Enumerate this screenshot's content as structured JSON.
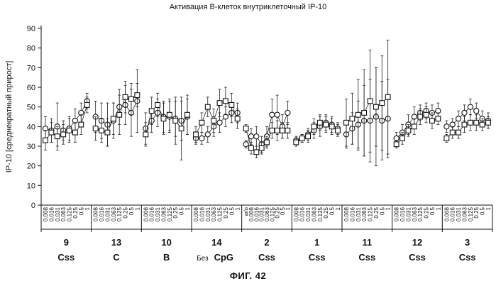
{
  "title": "Активация В-клеток внутриклеточный IP-10",
  "figure_label": "ФИГ. 42",
  "chart_data": {
    "type": "scatter",
    "title": "Активация В-клеток внутриклеточный IP-10",
    "ylabel": "IP-10  [среднекратный прирост]",
    "ylim": [
      0,
      90
    ],
    "yticks": [
      0,
      10,
      20,
      30,
      40,
      50,
      60,
      70,
      80,
      90
    ],
    "markers": [
      "circle",
      "square"
    ],
    "groups": [
      {
        "number": "9",
        "type": "Css",
        "x": [
          "0.008",
          "0.016",
          "0.031",
          "0.063",
          "0.125",
          "0.25",
          "0.5",
          "1"
        ],
        "series": [
          {
            "marker": "circle",
            "values": [
              39,
              38,
              40,
              38,
              39,
              43,
              47,
              53
            ],
            "err": [
              6,
              6,
              12,
              5,
              6,
              6,
              5,
              4
            ]
          },
          {
            "marker": "square",
            "values": [
              33,
              37,
              35,
              36,
              38,
              37,
              41,
              51
            ],
            "err": [
              5,
              5,
              5,
              5,
              6,
              5,
              5,
              4
            ]
          }
        ]
      },
      {
        "number": "13",
        "type": "C",
        "x": [
          "0.008",
          "0.016",
          "0.031",
          "0.063",
          "0.125",
          "0.25",
          "0.5",
          "1"
        ],
        "series": [
          {
            "marker": "circle",
            "values": [
              45,
              43,
              41,
              43,
              50,
              51,
              47,
              53
            ],
            "err": [
              8,
              9,
              11,
              9,
              9,
              10,
              12,
              16
            ]
          },
          {
            "marker": "square",
            "values": [
              39,
              38,
              37,
              44,
              46,
              55,
              54,
              56
            ],
            "err": [
              6,
              6,
              7,
              8,
              10,
              8,
              8,
              6
            ]
          }
        ]
      },
      {
        "number": "10",
        "type": "B",
        "x": [
          "0.008",
          "0.016",
          "0.031",
          "0.063",
          "0.125",
          "0.25",
          "0.5",
          "1"
        ],
        "series": [
          {
            "marker": "circle",
            "values": [
              39,
              43,
              47,
              45,
              45,
              44,
              43,
              45
            ],
            "err": [
              8,
              6,
              7,
              8,
              8,
              9,
              10,
              9
            ]
          },
          {
            "marker": "square",
            "values": [
              36,
              48,
              51,
              44,
              46,
              43,
              39,
              46
            ],
            "err": [
              6,
              7,
              6,
              8,
              8,
              12,
              16,
              10
            ]
          }
        ]
      },
      {
        "number": "14",
        "type": "CpG",
        "type_prefix": "Без",
        "x": [
          "0.008",
          "0.016",
          "0.031",
          "0.063",
          "0.125",
          "0.25",
          "0.5",
          "1"
        ],
        "series": [
          {
            "marker": "circle",
            "values": [
              34,
              34,
              36,
              40,
              42,
              45,
              47,
              47
            ],
            "err": [
              3,
              3,
              4,
              5,
              5,
              5,
              5,
              5
            ]
          },
          {
            "marker": "square",
            "values": [
              36,
              42,
              50,
              43,
              52,
              53,
              51,
              44
            ],
            "err": [
              4,
              5,
              5,
              6,
              7,
              7,
              6,
              5
            ]
          }
        ]
      },
      {
        "number": "2",
        "type": "Css",
        "x": [
          "w/o",
          "0.008",
          "0.016",
          "0.031",
          "0.063",
          "0.125",
          "0.25",
          "0.5",
          "1"
        ],
        "series": [
          {
            "marker": "circle",
            "values": [
              31,
              35,
              35,
              31,
              35,
              46,
              46,
              40,
              47
            ],
            "err": [
              2,
              4,
              5,
              4,
              5,
              8,
              10,
              6,
              6
            ]
          },
          {
            "marker": "square",
            "values": [
              39,
              29,
              27,
              29,
              32,
              38,
              38,
              38,
              38
            ],
            "err": [
              2,
              3,
              3,
              3,
              3,
              4,
              5,
              4,
              4
            ]
          }
        ]
      },
      {
        "number": "1",
        "type": "Css",
        "x": [
          "0.008",
          "0.016",
          "0.031",
          "0.063",
          "0.125",
          "0.25",
          "0.5",
          "1"
        ],
        "series": [
          {
            "marker": "circle",
            "values": [
              33,
              34,
              36,
              38,
              40,
              42,
              41,
              39
            ],
            "err": [
              2,
              2,
              3,
              4,
              5,
              4,
              4,
              3
            ]
          },
          {
            "marker": "square",
            "values": [
              32,
              34,
              35,
              40,
              42,
              41,
              40,
              38
            ],
            "err": [
              2,
              2,
              3,
              4,
              4,
              4,
              4,
              3
            ]
          }
        ]
      },
      {
        "number": "11",
        "type": "Css",
        "x": [
          "0.008",
          "0.016",
          "0.031",
          "0.063",
          "0.125",
          "0.25",
          "0.5",
          "1"
        ],
        "series": [
          {
            "marker": "circle",
            "values": [
              36,
              39,
              41,
              43,
              43,
              45,
              43,
              44
            ],
            "err": [
              7,
              8,
              12,
              18,
              21,
              25,
              20,
              20
            ]
          },
          {
            "marker": "square",
            "values": [
              42,
              44,
              46,
              47,
              53,
              50,
              52,
              55
            ],
            "err": [
              12,
              13,
              18,
              22,
              26,
              20,
              24,
              29
            ]
          }
        ]
      },
      {
        "number": "12",
        "type": "Css",
        "x": [
          "0.008",
          "0.016",
          "0.031",
          "0.063",
          "0.125",
          "0.25",
          "0.5",
          "1"
        ],
        "series": [
          {
            "marker": "circle",
            "values": [
              34,
              37,
              41,
              45,
              47,
              48,
              47,
              48
            ],
            "err": [
              3,
              4,
              5,
              5,
              4,
              4,
              4,
              4
            ]
          },
          {
            "marker": "square",
            "values": [
              31,
              34,
              38,
              40,
              45,
              46,
              43,
              44
            ],
            "err": [
              2,
              3,
              3,
              4,
              4,
              4,
              4,
              3
            ]
          }
        ]
      },
      {
        "number": "3",
        "type": "Css",
        "x": [
          "0.008",
          "0.016",
          "0.031",
          "0.063",
          "0.125",
          "0.25",
          "0.5",
          "1"
        ],
        "series": [
          {
            "marker": "circle",
            "values": [
              40,
              41,
              44,
              47,
              50,
              48,
              44,
              43
            ],
            "err": [
              3,
              3,
              4,
              4,
              4,
              4,
              4,
              4
            ]
          },
          {
            "marker": "square",
            "values": [
              34,
              37,
              37,
              41,
              42,
              42,
              41,
              42
            ],
            "err": [
              2,
              3,
              3,
              4,
              4,
              4,
              3,
              3
            ]
          }
        ]
      }
    ]
  }
}
